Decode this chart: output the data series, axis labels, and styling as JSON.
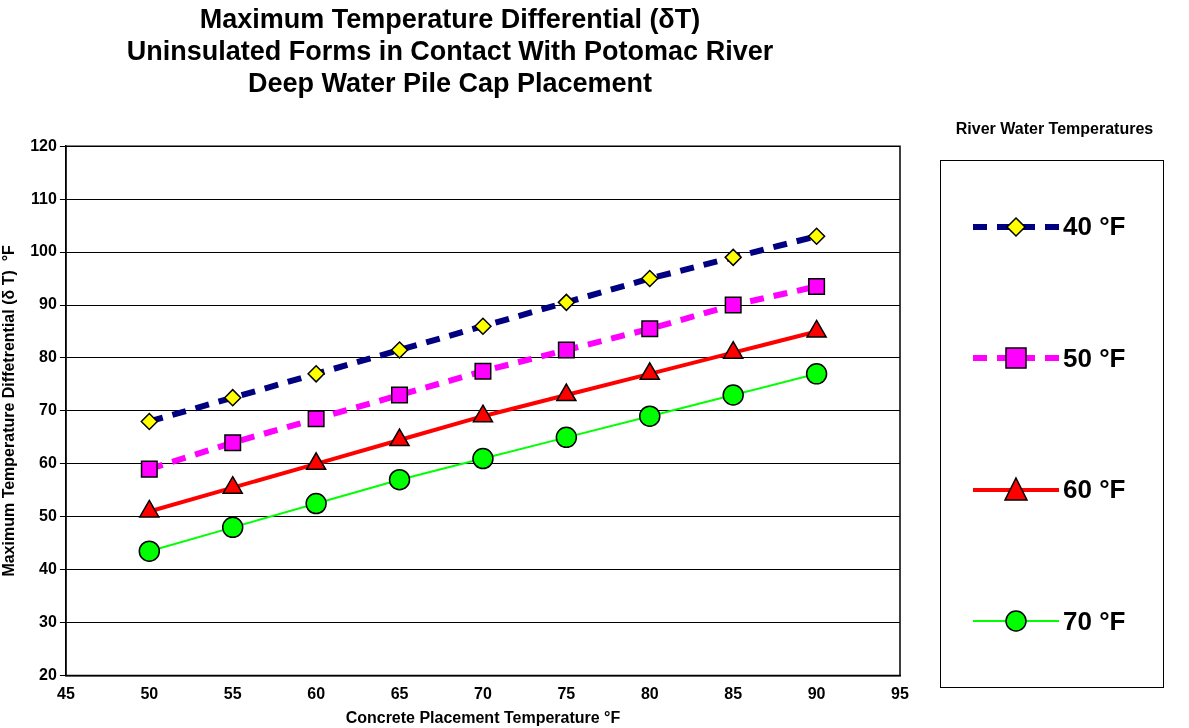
{
  "chart_data": {
    "type": "line",
    "title": [
      "Maximum Temperature Differential (δT)",
      "Uninsulated Forms in Contact With Potomac River",
      "Deep Water Pile Cap Placement"
    ],
    "xlabel": "Concrete Placement Temperature °F",
    "ylabel": "Maximum Temperature Diffetrential (δ T)  °F",
    "legend_title": "River Water Temperatures",
    "x": [
      50,
      55,
      60,
      65,
      70,
      75,
      80,
      85,
      90
    ],
    "series": [
      {
        "name": "40 °F",
        "color": "#000080",
        "colors": [
          "#ffff00",
          "#ffff00",
          "#ffff00",
          "#ffff00",
          "#ffff00",
          "#ffff00",
          "#ffff00",
          "#ffff00",
          "#ffff00"
        ],
        "marker": "diamond",
        "line_style": "dashed",
        "values": [
          68,
          72.5,
          77,
          81.5,
          86,
          90.5,
          95,
          99,
          103
        ]
      },
      {
        "name": "50 °F",
        "color": "#ff00ff",
        "marker": "square",
        "line_style": "dashed",
        "values": [
          59,
          64,
          68.5,
          73,
          77.5,
          81.5,
          85.5,
          90,
          93.5
        ]
      },
      {
        "name": "60 °F",
        "color": "#ff0000",
        "marker": "triangle",
        "line_style": "solid",
        "values": [
          51,
          55.5,
          60,
          64.5,
          69,
          73,
          77,
          81,
          85
        ]
      },
      {
        "name": "70 °F",
        "color": "#00ff00",
        "marker": "circle",
        "line_style": "solid",
        "values": [
          43.5,
          48,
          52.5,
          57,
          61,
          65,
          69,
          73,
          77
        ]
      }
    ],
    "xlim": [
      45,
      95
    ],
    "xticks": [
      45,
      50,
      55,
      60,
      65,
      70,
      75,
      80,
      85,
      90,
      95
    ],
    "ylim": [
      20,
      120
    ],
    "yticks": [
      20,
      30,
      40,
      50,
      60,
      70,
      80,
      90,
      100,
      110,
      120
    ],
    "grid": "y",
    "legend": "right"
  }
}
